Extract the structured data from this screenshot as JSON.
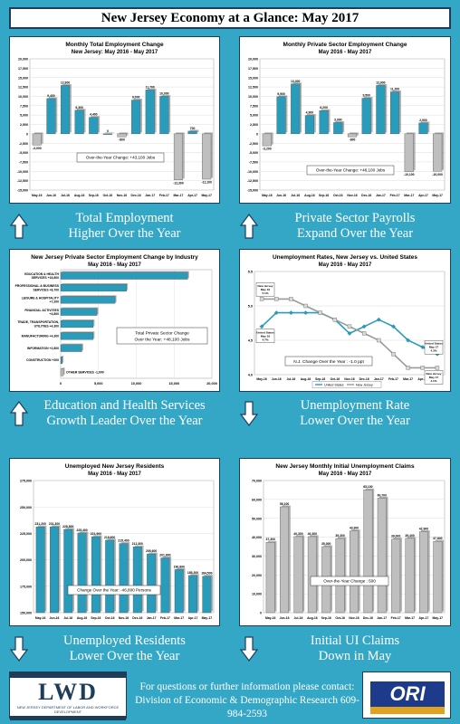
{
  "page_title": "New Jersey Economy at a Glance: May 2017",
  "colors": {
    "background": "#35a7c6",
    "teal_bar": "#2a9cbb",
    "gray_bar": "#bfbfbf",
    "nj_line": "#9a9a9a",
    "us_line": "#2a9cbb"
  },
  "captions": {
    "total_employment": [
      "Total Employment",
      "Higher Over the Year"
    ],
    "private_payrolls": [
      "Private Sector Payrolls",
      "Expand Over the Year"
    ],
    "education_health": [
      "Education and Health Services",
      "Growth Leader Over the Year"
    ],
    "unemployment_rate": [
      "Unemployment Rate",
      "Lower Over the Year"
    ],
    "unemployed_residents": [
      "Unemployed Residents",
      "Lower Over the Year"
    ],
    "initial_claims": [
      "Initial UI Claims",
      "Down in May"
    ]
  },
  "footer": {
    "line1": "For questions or further information please contact:",
    "line2": "Division of Economic & Demographic Research 609-984-2593",
    "left_logo_text": "LWD",
    "left_logo_sub": "NEW JERSEY DEPARTMENT OF LABOR AND WORKFORCE DEVELOPMENT",
    "right_logo_text": "ORI"
  },
  "chart_data": [
    {
      "id": "total_employment",
      "type": "bar",
      "title": "Monthly Total Employment Change",
      "subtitle": "New Jersey: May 2016 - May 2017",
      "categories": [
        "May-16",
        "Jun-16",
        "Jul-16",
        "Aug-16",
        "Sep-16",
        "Oct-16",
        "Nov-16",
        "Dec-16",
        "Jan-17",
        "Feb-17",
        "Mar-17",
        "Apr-17",
        "May-17"
      ],
      "values": [
        -3000,
        9400,
        12900,
        6300,
        4400,
        0,
        -800,
        9000,
        11700,
        10000,
        -12300,
        700,
        -12100
      ],
      "labels": [
        "-3,000",
        "9,400",
        "12,900",
        "6,300",
        "4,400",
        "0",
        "-800",
        "9,000",
        "11,700",
        "10,000",
        "-12,300",
        "700",
        "-12,100"
      ],
      "bar_colors": [
        "gray",
        "teal",
        "teal",
        "teal",
        "teal",
        "teal",
        "gray",
        "teal",
        "teal",
        "teal",
        "gray",
        "teal",
        "gray"
      ],
      "ylim": [
        -15000,
        20000
      ],
      "yticks": [
        -15000,
        -12500,
        -10000,
        -7500,
        -5000,
        -2500,
        0,
        2500,
        5000,
        7500,
        10000,
        12500,
        15000,
        17500,
        20000
      ],
      "ytick_labels": [
        "-15,000",
        "-12,500",
        "-10,000",
        "-7,500",
        "-5,000",
        "-2,500",
        "0",
        "2,500",
        "5,000",
        "7,500",
        "10,000",
        "12,500",
        "15,000",
        "17,500",
        "20,000"
      ],
      "annotation": "Over-the-Year Change: +43,100 Jobs"
    },
    {
      "id": "private_payrolls",
      "type": "bar",
      "title": "Monthly Private Sector Employment Change",
      "subtitle": "May 2016 - May 2017",
      "categories": [
        "May-16",
        "Jun-16",
        "Jul-16",
        "Aug-16",
        "Sep-16",
        "Oct-16",
        "Nov-16",
        "Dec-16",
        "Jan-17",
        "Feb-17",
        "Mar-17",
        "Apr-17",
        "May-17"
      ],
      "values": [
        -3200,
        9900,
        13300,
        4900,
        6200,
        3000,
        -800,
        9500,
        12900,
        11200,
        -10100,
        2900,
        -10000
      ],
      "labels": [
        "-3,200",
        "9,900",
        "13,300",
        "4,900",
        "6,200",
        "3,000",
        "-800",
        "9,500",
        "12,900",
        "11,200",
        "-10,100",
        "2,900",
        "-10,000"
      ],
      "bar_colors": [
        "gray",
        "teal",
        "teal",
        "teal",
        "teal",
        "teal",
        "gray",
        "teal",
        "teal",
        "teal",
        "gray",
        "teal",
        "gray"
      ],
      "ylim": [
        -15000,
        20000
      ],
      "yticks": [
        -15000,
        -12500,
        -10000,
        -7500,
        -5000,
        -2500,
        0,
        2500,
        5000,
        7500,
        10000,
        12500,
        15000,
        17500,
        20000
      ],
      "ytick_labels": [
        "-15,000",
        "-12,500",
        "-10,000",
        "-7,500",
        "-5,000",
        "-2,500",
        "0",
        "2,500",
        "5,000",
        "7,500",
        "10,000",
        "12,500",
        "15,000",
        "17,500",
        "20,000"
      ],
      "annotation": "Over-the-Year Change: +48,100 Jobs"
    },
    {
      "id": "industry",
      "type": "bar",
      "orientation": "horizontal",
      "title": "New Jersey Private Sector Employment Change by Industry",
      "subtitle": "May 2016 - May 2017",
      "categories": [
        "EDUCATION & HEALTH SERVICES +16,800",
        "PROFESSIONAL & BUSINESS SERVICES +8,700",
        "LEISURE & HOSPITALITY +7,200",
        "FINANCIAL ACTIVITIES +4,800",
        "TRADE, TRANSPORTATION, UTILITIES +4,300",
        "MANUFACTURING +4,300",
        "INFORMATION +2,800",
        "CONSTRUCTION +200",
        "OTHER SERVICES -1,000"
      ],
      "values": [
        16800,
        8700,
        7200,
        4800,
        4300,
        4300,
        2800,
        200,
        -1000
      ],
      "xlim": [
        0,
        20000
      ],
      "xticks": [
        0,
        5000,
        10000,
        15000,
        20000
      ],
      "xtick_labels": [
        "0",
        "5,000",
        "10,000",
        "15,000",
        "20,000"
      ],
      "annotation": [
        "Total Private Sector Change",
        "Over the Year: +48,100 Jobs"
      ]
    },
    {
      "id": "unemployment_rate",
      "type": "line",
      "title": "Unemployment Rates, New Jersey vs. United States",
      "subtitle": "May 2016 - May 2017",
      "categories": [
        "May-16",
        "Jun-16",
        "Jul-16",
        "Aug-16",
        "Sep-16",
        "Oct-16",
        "Nov-16",
        "Dec-16",
        "Jan-17",
        "Feb-17",
        "Mar-17",
        "Apr-17",
        "May-17"
      ],
      "series": [
        {
          "name": "United States",
          "values": [
            4.7,
            4.9,
            4.9,
            4.9,
            4.9,
            4.8,
            4.6,
            4.7,
            4.8,
            4.7,
            4.5,
            4.4,
            4.3
          ]
        },
        {
          "name": "New Jersey",
          "values": [
            5.1,
            5.1,
            5.1,
            5.0,
            4.9,
            4.8,
            4.7,
            4.6,
            4.5,
            4.3,
            4.1,
            4.1,
            4.1
          ]
        }
      ],
      "ylim": [
        4.0,
        5.5
      ],
      "yticks": [
        4.0,
        4.5,
        5.0,
        5.5
      ],
      "ytick_labels": [
        "4.0",
        "4.5",
        "5.0",
        "5.5"
      ],
      "callouts": [
        [
          "New Jersey",
          "May 16",
          "5.1%"
        ],
        [
          "United States",
          "May 16",
          "4.7%"
        ],
        [
          "United States",
          "May 17",
          "4.3%"
        ],
        [
          "New Jersey",
          "May 17",
          "4.1%"
        ]
      ],
      "annotation": "N.J. Change Over the Year : -1.0 ppt"
    },
    {
      "id": "unemployed_residents",
      "type": "bar",
      "title": "Unemployed New Jersey Residents",
      "subtitle": "May 2016 - May 2017",
      "categories": [
        "May-16",
        "Jun-16",
        "Jul-16",
        "Aug-16",
        "Sep-16",
        "Oct-16",
        "Nov-16",
        "Dec-16",
        "Jan-17",
        "Feb-17",
        "Mar-17",
        "Apr-17",
        "May-17"
      ],
      "values": [
        231200,
        231300,
        228800,
        225400,
        221900,
        218600,
        215400,
        212300,
        205600,
        201800,
        190800,
        185200,
        184500
      ],
      "labels": [
        "231,200",
        "231,300",
        "228,800",
        "225,400",
        "221,900",
        "218,600",
        "215,400",
        "212,300",
        "205,600",
        "201,800",
        "190,800",
        "185,200",
        "184,500"
      ],
      "ylim": [
        150000,
        275000
      ],
      "yticks": [
        150000,
        175000,
        200000,
        225000,
        250000,
        275000
      ],
      "ytick_labels": [
        "150,000",
        "175,000",
        "200,000",
        "225,000",
        "250,000",
        "275,000"
      ],
      "annotation": "Change Over the Year: -46,800 Persons"
    },
    {
      "id": "initial_claims",
      "type": "bar",
      "title": "New Jersey Monthly Initial Unemployment Claims",
      "subtitle": "May 2016 - May 2017",
      "categories": [
        "May-16",
        "Jun-16",
        "Jul-16",
        "Aug-16",
        "Sep-16",
        "Oct-16",
        "Nov-16",
        "Dec-16",
        "Jan-17",
        "Feb-17",
        "Mar-17",
        "Apr-17",
        "May-17"
      ],
      "values": [
        37300,
        56100,
        40300,
        40300,
        35000,
        39300,
        43300,
        65100,
        60700,
        39000,
        39400,
        42900,
        37800
      ],
      "labels": [
        "37,300",
        "56,100",
        "40,300",
        "40,300",
        "35,000",
        "39,300",
        "43,300",
        "65,100",
        "60,700",
        "39,000",
        "39,400",
        "42,900",
        "37,800"
      ],
      "ylim": [
        0,
        70000
      ],
      "yticks": [
        0,
        10000,
        20000,
        30000,
        40000,
        50000,
        60000,
        70000
      ],
      "ytick_labels": [
        "0",
        "10,000",
        "20,000",
        "30,000",
        "40,000",
        "50,000",
        "60,000",
        "70,000"
      ],
      "annotation": "Over-the-Year Change : 500"
    }
  ]
}
